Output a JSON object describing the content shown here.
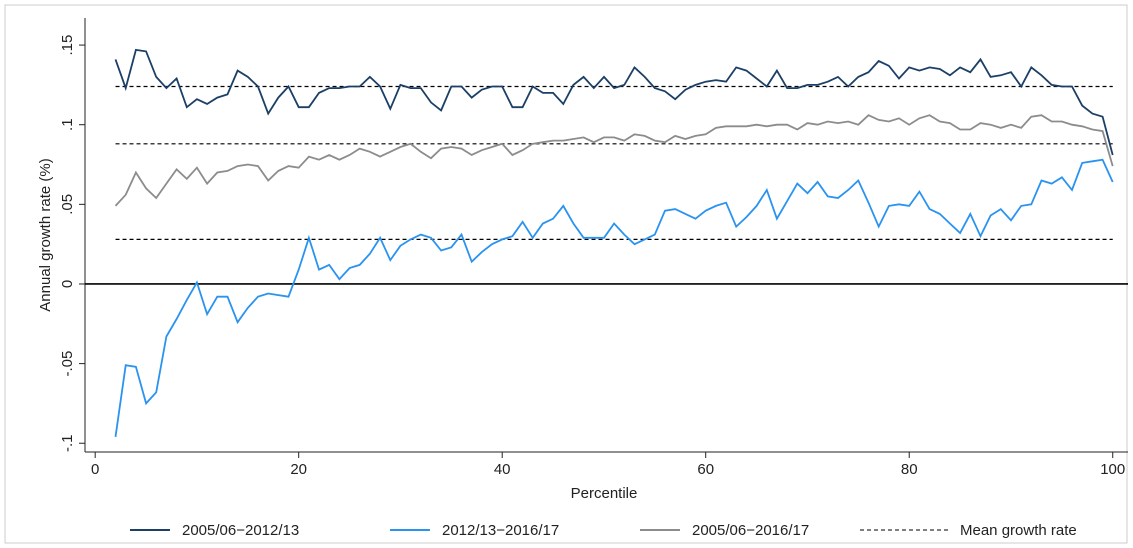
{
  "chart_data": {
    "type": "line",
    "x_label": "Percentile",
    "y_label": "Annual growth rate (%)",
    "x": [
      2,
      3,
      4,
      5,
      6,
      7,
      8,
      9,
      10,
      11,
      12,
      13,
      14,
      15,
      16,
      17,
      18,
      19,
      20,
      21,
      22,
      23,
      24,
      25,
      26,
      27,
      28,
      29,
      30,
      31,
      32,
      33,
      34,
      35,
      36,
      37,
      38,
      39,
      40,
      41,
      42,
      43,
      44,
      45,
      46,
      47,
      48,
      49,
      50,
      51,
      52,
      53,
      54,
      55,
      56,
      57,
      58,
      59,
      60,
      61,
      62,
      63,
      64,
      65,
      66,
      67,
      68,
      69,
      70,
      71,
      72,
      73,
      74,
      75,
      76,
      77,
      78,
      79,
      80,
      81,
      82,
      83,
      84,
      85,
      86,
      87,
      88,
      89,
      90,
      91,
      92,
      93,
      94,
      95,
      96,
      97,
      98,
      99,
      100
    ],
    "series": [
      {
        "name": "2005/06−2012/13",
        "color": "#1c3f66",
        "mean": 0.124,
        "values": [
          0.141,
          0.123,
          0.147,
          0.146,
          0.13,
          0.123,
          0.129,
          0.111,
          0.116,
          0.113,
          0.117,
          0.119,
          0.134,
          0.13,
          0.124,
          0.107,
          0.117,
          0.124,
          0.111,
          0.111,
          0.12,
          0.123,
          0.123,
          0.124,
          0.124,
          0.13,
          0.124,
          0.11,
          0.125,
          0.123,
          0.123,
          0.114,
          0.109,
          0.124,
          0.124,
          0.117,
          0.122,
          0.124,
          0.124,
          0.111,
          0.111,
          0.124,
          0.12,
          0.12,
          0.113,
          0.125,
          0.13,
          0.123,
          0.13,
          0.123,
          0.125,
          0.136,
          0.13,
          0.123,
          0.121,
          0.116,
          0.122,
          0.125,
          0.127,
          0.128,
          0.127,
          0.136,
          0.134,
          0.129,
          0.124,
          0.134,
          0.123,
          0.123,
          0.125,
          0.125,
          0.127,
          0.13,
          0.124,
          0.13,
          0.133,
          0.14,
          0.137,
          0.129,
          0.136,
          0.134,
          0.136,
          0.135,
          0.131,
          0.136,
          0.133,
          0.141,
          0.13,
          0.131,
          0.133,
          0.124,
          0.136,
          0.131,
          0.125,
          0.124,
          0.124,
          0.112,
          0.107,
          0.105,
          0.081
        ]
      },
      {
        "name": "2012/13−2016/17",
        "color": "#2a93f0",
        "mean": 0.028,
        "values": [
          -0.096,
          -0.051,
          -0.052,
          -0.075,
          -0.068,
          -0.033,
          -0.022,
          -0.01,
          0.001,
          -0.019,
          -0.008,
          -0.008,
          -0.024,
          -0.015,
          -0.008,
          -0.006,
          -0.007,
          -0.008,
          0.009,
          0.029,
          0.009,
          0.012,
          0.003,
          0.01,
          0.012,
          0.019,
          0.029,
          0.015,
          0.024,
          0.028,
          0.031,
          0.029,
          0.021,
          0.023,
          0.031,
          0.014,
          0.02,
          0.025,
          0.028,
          0.03,
          0.039,
          0.029,
          0.038,
          0.041,
          0.049,
          0.038,
          0.029,
          0.029,
          0.029,
          0.038,
          0.031,
          0.025,
          0.028,
          0.031,
          0.046,
          0.047,
          0.044,
          0.041,
          0.046,
          0.049,
          0.051,
          0.036,
          0.042,
          0.049,
          0.059,
          0.041,
          0.052,
          0.063,
          0.057,
          0.064,
          0.055,
          0.054,
          0.059,
          0.065,
          0.051,
          0.036,
          0.049,
          0.05,
          0.049,
          0.058,
          0.047,
          0.044,
          0.038,
          0.032,
          0.044,
          0.03,
          0.043,
          0.047,
          0.04,
          0.049,
          0.05,
          0.065,
          0.063,
          0.067,
          0.059,
          0.076,
          0.077,
          0.078,
          0.064
        ]
      },
      {
        "name": "2005/06−2016/17",
        "color": "#8c8c8c",
        "mean": 0.088,
        "values": [
          0.049,
          0.056,
          0.07,
          0.06,
          0.054,
          0.063,
          0.072,
          0.066,
          0.073,
          0.063,
          0.07,
          0.071,
          0.074,
          0.075,
          0.074,
          0.065,
          0.071,
          0.074,
          0.073,
          0.08,
          0.078,
          0.081,
          0.078,
          0.081,
          0.085,
          0.083,
          0.08,
          0.083,
          0.086,
          0.088,
          0.083,
          0.079,
          0.085,
          0.086,
          0.085,
          0.081,
          0.084,
          0.086,
          0.088,
          0.081,
          0.084,
          0.088,
          0.089,
          0.09,
          0.09,
          0.091,
          0.092,
          0.089,
          0.092,
          0.092,
          0.09,
          0.094,
          0.093,
          0.09,
          0.089,
          0.093,
          0.091,
          0.093,
          0.094,
          0.098,
          0.099,
          0.099,
          0.099,
          0.1,
          0.099,
          0.1,
          0.1,
          0.097,
          0.101,
          0.1,
          0.102,
          0.101,
          0.102,
          0.1,
          0.106,
          0.103,
          0.102,
          0.104,
          0.1,
          0.104,
          0.106,
          0.102,
          0.101,
          0.097,
          0.097,
          0.101,
          0.1,
          0.098,
          0.1,
          0.098,
          0.105,
          0.106,
          0.102,
          0.102,
          0.1,
          0.099,
          0.097,
          0.096,
          0.074
        ]
      }
    ],
    "mean_legend": "Mean growth rate",
    "xlim": [
      -1,
      101.5
    ],
    "ylim": [
      -0.1055,
      0.167
    ],
    "xticks": [
      0,
      20,
      40,
      60,
      80,
      100
    ],
    "yticks": [
      {
        "value": -0.1,
        "label": "-.1"
      },
      {
        "value": -0.05,
        "label": "-.05"
      },
      0,
      {
        "value": 0.05,
        "label": ".05"
      },
      {
        "value": 0.1,
        "label": ".1"
      },
      {
        "value": 0.15,
        "label": ".15"
      }
    ],
    "zero_line": true
  }
}
